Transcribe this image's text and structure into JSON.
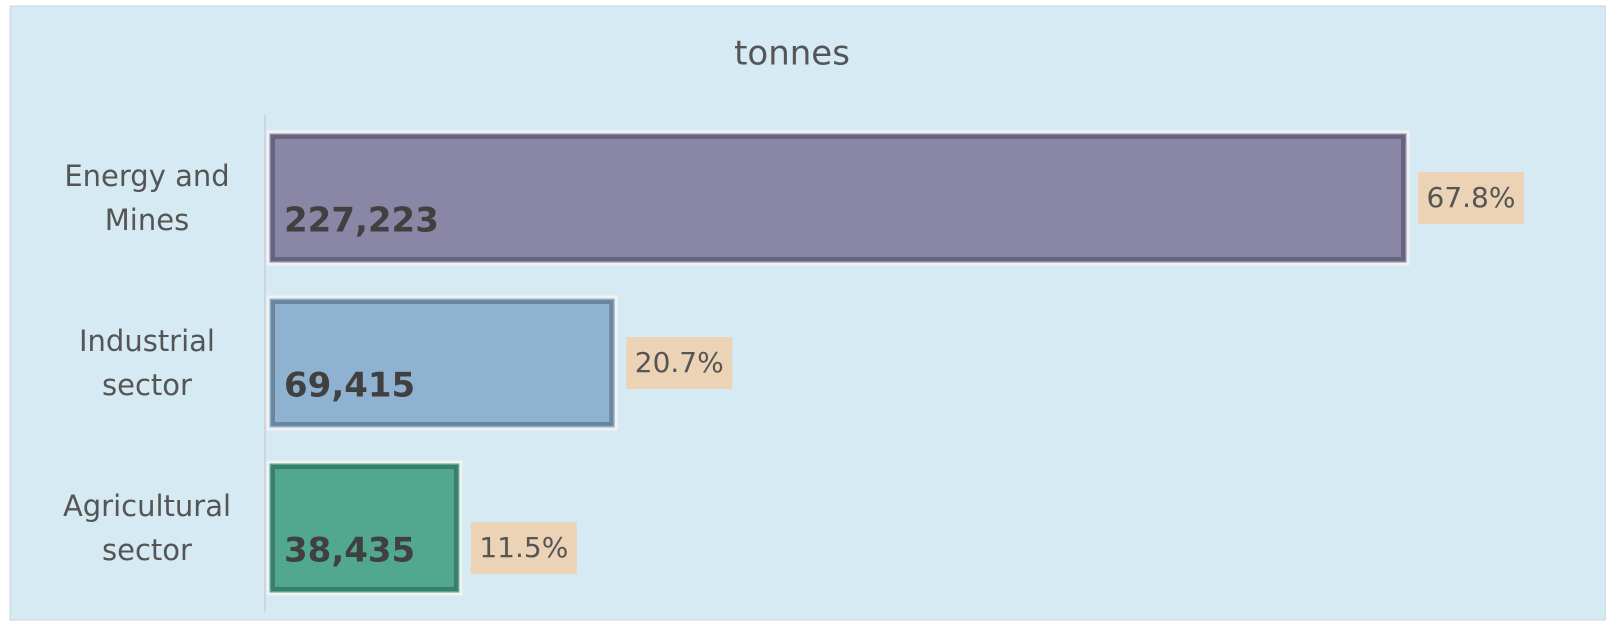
{
  "chart_data": {
    "type": "bar",
    "orientation": "horizontal",
    "title": "tonnes",
    "categories": [
      "Energy and Mines",
      "Industrial sector",
      "Agricultural sector"
    ],
    "values": [
      227223,
      69415,
      38435
    ],
    "value_labels": [
      "227,223",
      "69,415",
      "38,435"
    ],
    "shares": [
      67.8,
      20.7,
      11.5
    ],
    "share_labels": [
      "67.8%",
      "20.7%",
      "11.5%"
    ],
    "colors": [
      "#8986a6",
      "#8fb2d0",
      "#52a88e"
    ]
  }
}
